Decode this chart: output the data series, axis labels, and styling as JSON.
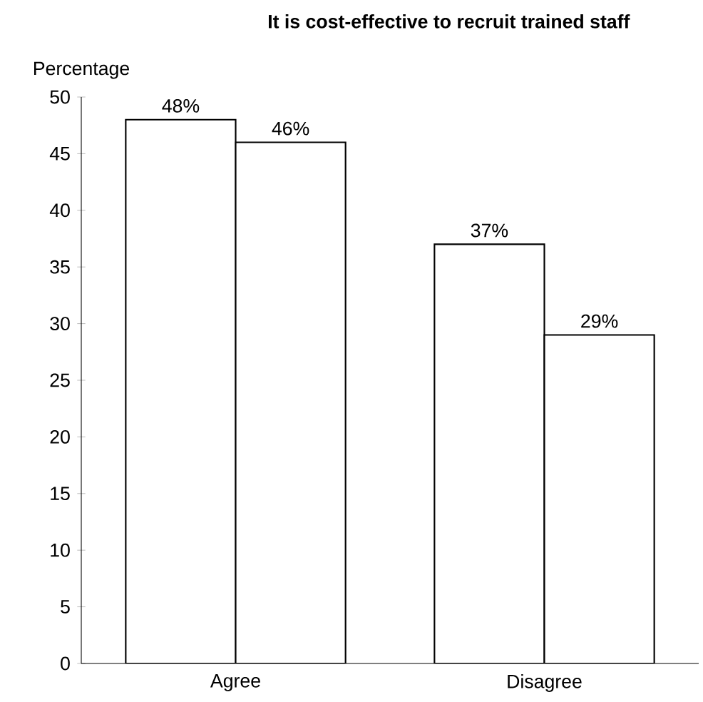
{
  "chart_data": {
    "type": "bar",
    "title": "It is cost-effective to recruit trained staff",
    "ylabel": "Percentage",
    "categories": [
      "Agree",
      "Disagree"
    ],
    "series": [
      {
        "color": "#ffffff",
        "values": [
          48,
          37
        ],
        "value_labels": [
          "48%",
          "37%"
        ]
      },
      {
        "color": "#ffffff",
        "values": [
          46,
          29
        ],
        "value_labels": [
          "46%",
          "29%"
        ]
      }
    ],
    "ylim": [
      0,
      50
    ],
    "yticks": [
      0,
      5,
      10,
      15,
      20,
      25,
      30,
      35,
      40,
      45,
      50
    ]
  }
}
